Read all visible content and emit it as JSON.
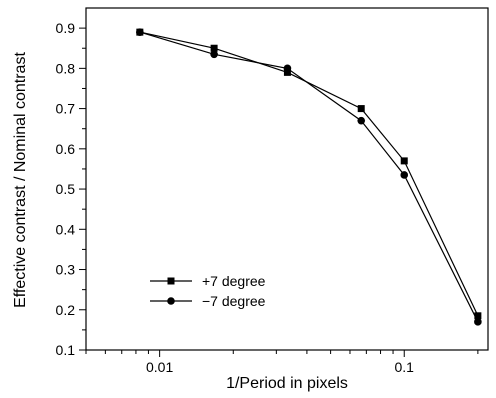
{
  "chart_data": {
    "type": "line",
    "xlabel": "1/Period in pixels",
    "ylabel": "Effective contrast / Nominal contrast",
    "xscale": "log",
    "xlim": [
      0.005,
      0.22
    ],
    "ylim": [
      0.1,
      0.95
    ],
    "x_ticks": [
      {
        "value": 0.01,
        "label": "0.01"
      },
      {
        "value": 0.1,
        "label": "0.1"
      }
    ],
    "y_ticks": [
      {
        "value": 0.1,
        "label": "0.1"
      },
      {
        "value": 0.2,
        "label": "0.2"
      },
      {
        "value": 0.3,
        "label": "0.3"
      },
      {
        "value": 0.4,
        "label": "0.4"
      },
      {
        "value": 0.5,
        "label": "0.5"
      },
      {
        "value": 0.6,
        "label": "0.6"
      },
      {
        "value": 0.7,
        "label": "0.7"
      },
      {
        "value": 0.8,
        "label": "0.8"
      },
      {
        "value": 0.9,
        "label": "0.9"
      }
    ],
    "grid": false,
    "legend_position": "bottom-left",
    "series": [
      {
        "name": "+7 degree",
        "marker": "square",
        "x": [
          0.0083,
          0.0167,
          0.0333,
          0.0667,
          0.1,
          0.2
        ],
        "y": [
          0.89,
          0.85,
          0.79,
          0.7,
          0.57,
          0.185
        ]
      },
      {
        "name": "−7 degree",
        "marker": "circle",
        "x": [
          0.0083,
          0.0167,
          0.0333,
          0.0667,
          0.1,
          0.2
        ],
        "y": [
          0.89,
          0.835,
          0.8,
          0.67,
          0.535,
          0.17
        ]
      }
    ],
    "color": "#000000"
  }
}
